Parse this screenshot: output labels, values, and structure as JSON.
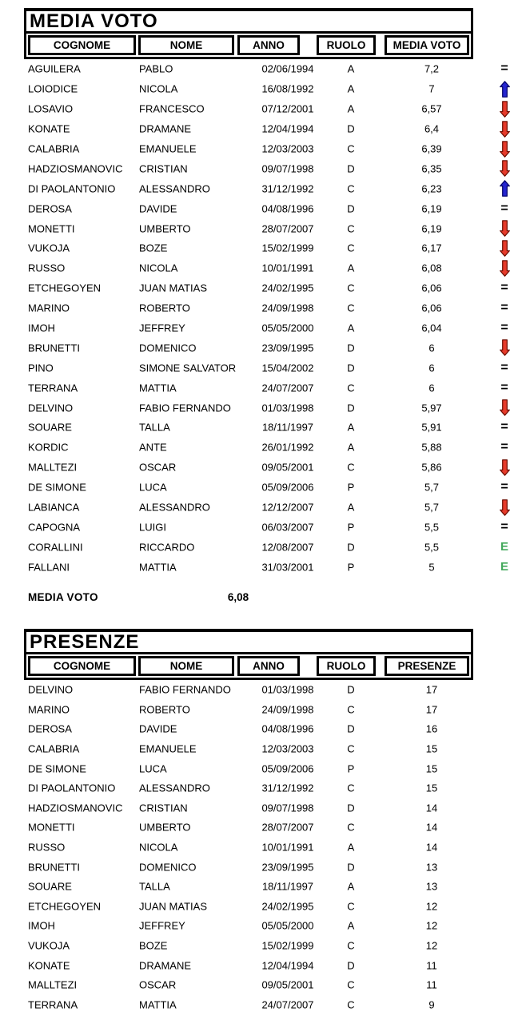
{
  "media_voto_table": {
    "title": "MEDIA VOTO",
    "columns": [
      "COGNOME",
      "NOME",
      "ANNO",
      "RUOLO",
      "MEDIA VOTO"
    ],
    "rows": [
      {
        "cognome": "AGUILERA",
        "nome": "PABLO",
        "anno": "02/06/1994",
        "ruolo": "A",
        "value": "7,2",
        "trend": "equal"
      },
      {
        "cognome": "LOIODICE",
        "nome": "NICOLA",
        "anno": "16/08/1992",
        "ruolo": "A",
        "value": "7",
        "trend": "up"
      },
      {
        "cognome": "LOSAVIO",
        "nome": "FRANCESCO",
        "anno": "07/12/2001",
        "ruolo": "A",
        "value": "6,57",
        "trend": "down"
      },
      {
        "cognome": "KONATE",
        "nome": "DRAMANE",
        "anno": "12/04/1994",
        "ruolo": "D",
        "value": "6,4",
        "trend": "down"
      },
      {
        "cognome": "CALABRIA",
        "nome": "EMANUELE",
        "anno": "12/03/2003",
        "ruolo": "C",
        "value": "6,39",
        "trend": "down"
      },
      {
        "cognome": "HADZIOSMANOVIC",
        "nome": "CRISTIAN",
        "anno": "09/07/1998",
        "ruolo": "D",
        "value": "6,35",
        "trend": "down"
      },
      {
        "cognome": "DI PAOLANTONIO",
        "nome": "ALESSANDRO",
        "anno": "31/12/1992",
        "ruolo": "C",
        "value": "6,23",
        "trend": "up"
      },
      {
        "cognome": "DEROSA",
        "nome": "DAVIDE",
        "anno": "04/08/1996",
        "ruolo": "D",
        "value": "6,19",
        "trend": "equal"
      },
      {
        "cognome": "MONETTI",
        "nome": "UMBERTO",
        "anno": "28/07/2007",
        "ruolo": "C",
        "value": "6,19",
        "trend": "down"
      },
      {
        "cognome": "VUKOJA",
        "nome": "BOZE",
        "anno": "15/02/1999",
        "ruolo": "C",
        "value": "6,17",
        "trend": "down"
      },
      {
        "cognome": "RUSSO",
        "nome": "NICOLA",
        "anno": "10/01/1991",
        "ruolo": "A",
        "value": "6,08",
        "trend": "down"
      },
      {
        "cognome": "ETCHEGOYEN",
        "nome": "JUAN MATIAS",
        "anno": "24/02/1995",
        "ruolo": "C",
        "value": "6,06",
        "trend": "equal"
      },
      {
        "cognome": "MARINO",
        "nome": "ROBERTO",
        "anno": "24/09/1998",
        "ruolo": "C",
        "value": "6,06",
        "trend": "equal"
      },
      {
        "cognome": "IMOH",
        "nome": "JEFFREY",
        "anno": "05/05/2000",
        "ruolo": "A",
        "value": "6,04",
        "trend": "equal"
      },
      {
        "cognome": "BRUNETTI",
        "nome": "DOMENICO",
        "anno": "23/09/1995",
        "ruolo": "D",
        "value": "6",
        "trend": "down"
      },
      {
        "cognome": "PINO",
        "nome": "SIMONE SALVATOR",
        "anno": "15/04/2002",
        "ruolo": "D",
        "value": "6",
        "trend": "equal"
      },
      {
        "cognome": "TERRANA",
        "nome": "MATTIA",
        "anno": "24/07/2007",
        "ruolo": "C",
        "value": "6",
        "trend": "equal"
      },
      {
        "cognome": "DELVINO",
        "nome": "FABIO FERNANDO",
        "anno": "01/03/1998",
        "ruolo": "D",
        "value": "5,97",
        "trend": "down"
      },
      {
        "cognome": "SOUARE",
        "nome": "TALLA",
        "anno": "18/11/1997",
        "ruolo": "A",
        "value": "5,91",
        "trend": "equal"
      },
      {
        "cognome": "KORDIC",
        "nome": "ANTE",
        "anno": "26/01/1992",
        "ruolo": "A",
        "value": "5,88",
        "trend": "equal"
      },
      {
        "cognome": "MALLTEZI",
        "nome": "OSCAR",
        "anno": "09/05/2001",
        "ruolo": "C",
        "value": "5,86",
        "trend": "down"
      },
      {
        "cognome": "DE SIMONE",
        "nome": "LUCA",
        "anno": "05/09/2006",
        "ruolo": "P",
        "value": "5,7",
        "trend": "equal"
      },
      {
        "cognome": "LABIANCA",
        "nome": "ALESSANDRO",
        "anno": "12/12/2007",
        "ruolo": "A",
        "value": "5,7",
        "trend": "down"
      },
      {
        "cognome": "CAPOGNA",
        "nome": "LUIGI",
        "anno": "06/03/2007",
        "ruolo": "P",
        "value": "5,5",
        "trend": "equal"
      },
      {
        "cognome": "CORALLINI",
        "nome": "RICCARDO",
        "anno": "12/08/2007",
        "ruolo": "D",
        "value": "5,5",
        "trend": "e"
      },
      {
        "cognome": "FALLANI",
        "nome": "MATTIA",
        "anno": "31/03/2001",
        "ruolo": "P",
        "value": "5",
        "trend": "e"
      }
    ],
    "summary": {
      "label": "MEDIA VOTO",
      "value": "6,08"
    }
  },
  "presenze_table": {
    "title": "PRESENZE",
    "columns": [
      "COGNOME",
      "NOME",
      "ANNO",
      "RUOLO",
      "PRESENZE"
    ],
    "rows": [
      {
        "cognome": "DELVINO",
        "nome": "FABIO FERNANDO",
        "anno": "01/03/1998",
        "ruolo": "D",
        "value": "17"
      },
      {
        "cognome": "MARINO",
        "nome": "ROBERTO",
        "anno": "24/09/1998",
        "ruolo": "C",
        "value": "17"
      },
      {
        "cognome": "DEROSA",
        "nome": "DAVIDE",
        "anno": "04/08/1996",
        "ruolo": "D",
        "value": "16"
      },
      {
        "cognome": "CALABRIA",
        "nome": "EMANUELE",
        "anno": "12/03/2003",
        "ruolo": "C",
        "value": "15"
      },
      {
        "cognome": "DE SIMONE",
        "nome": "LUCA",
        "anno": "05/09/2006",
        "ruolo": "P",
        "value": "15"
      },
      {
        "cognome": "DI PAOLANTONIO",
        "nome": "ALESSANDRO",
        "anno": "31/12/1992",
        "ruolo": "C",
        "value": "15"
      },
      {
        "cognome": "HADZIOSMANOVIC",
        "nome": "CRISTIAN",
        "anno": "09/07/1998",
        "ruolo": "D",
        "value": "14"
      },
      {
        "cognome": "MONETTI",
        "nome": "UMBERTO",
        "anno": "28/07/2007",
        "ruolo": "C",
        "value": "14"
      },
      {
        "cognome": "RUSSO",
        "nome": "NICOLA",
        "anno": "10/01/1991",
        "ruolo": "A",
        "value": "14"
      },
      {
        "cognome": "BRUNETTI",
        "nome": "DOMENICO",
        "anno": "23/09/1995",
        "ruolo": "D",
        "value": "13"
      },
      {
        "cognome": "SOUARE",
        "nome": "TALLA",
        "anno": "18/11/1997",
        "ruolo": "A",
        "value": "13"
      },
      {
        "cognome": "ETCHEGOYEN",
        "nome": "JUAN MATIAS",
        "anno": "24/02/1995",
        "ruolo": "C",
        "value": "12"
      },
      {
        "cognome": "IMOH",
        "nome": "JEFFREY",
        "anno": "05/05/2000",
        "ruolo": "A",
        "value": "12"
      },
      {
        "cognome": "VUKOJA",
        "nome": "BOZE",
        "anno": "15/02/1999",
        "ruolo": "C",
        "value": "12"
      },
      {
        "cognome": "KONATE",
        "nome": "DRAMANE",
        "anno": "12/04/1994",
        "ruolo": "D",
        "value": "11"
      },
      {
        "cognome": "MALLTEZI",
        "nome": "OSCAR",
        "anno": "09/05/2001",
        "ruolo": "C",
        "value": "11"
      },
      {
        "cognome": "TERRANA",
        "nome": "MATTIA",
        "anno": "24/07/2007",
        "ruolo": "C",
        "value": "9"
      }
    ]
  },
  "icons": {
    "up_arrow": {
      "fill": "#2525cf",
      "outline": "#000066"
    },
    "down_arrow": {
      "fill": "#e63a2a",
      "outline": "#6b0c00"
    },
    "equal": {
      "symbol": "=",
      "color": "#000000"
    },
    "letter_e": {
      "symbol": "E",
      "color": "#44a95c"
    }
  }
}
